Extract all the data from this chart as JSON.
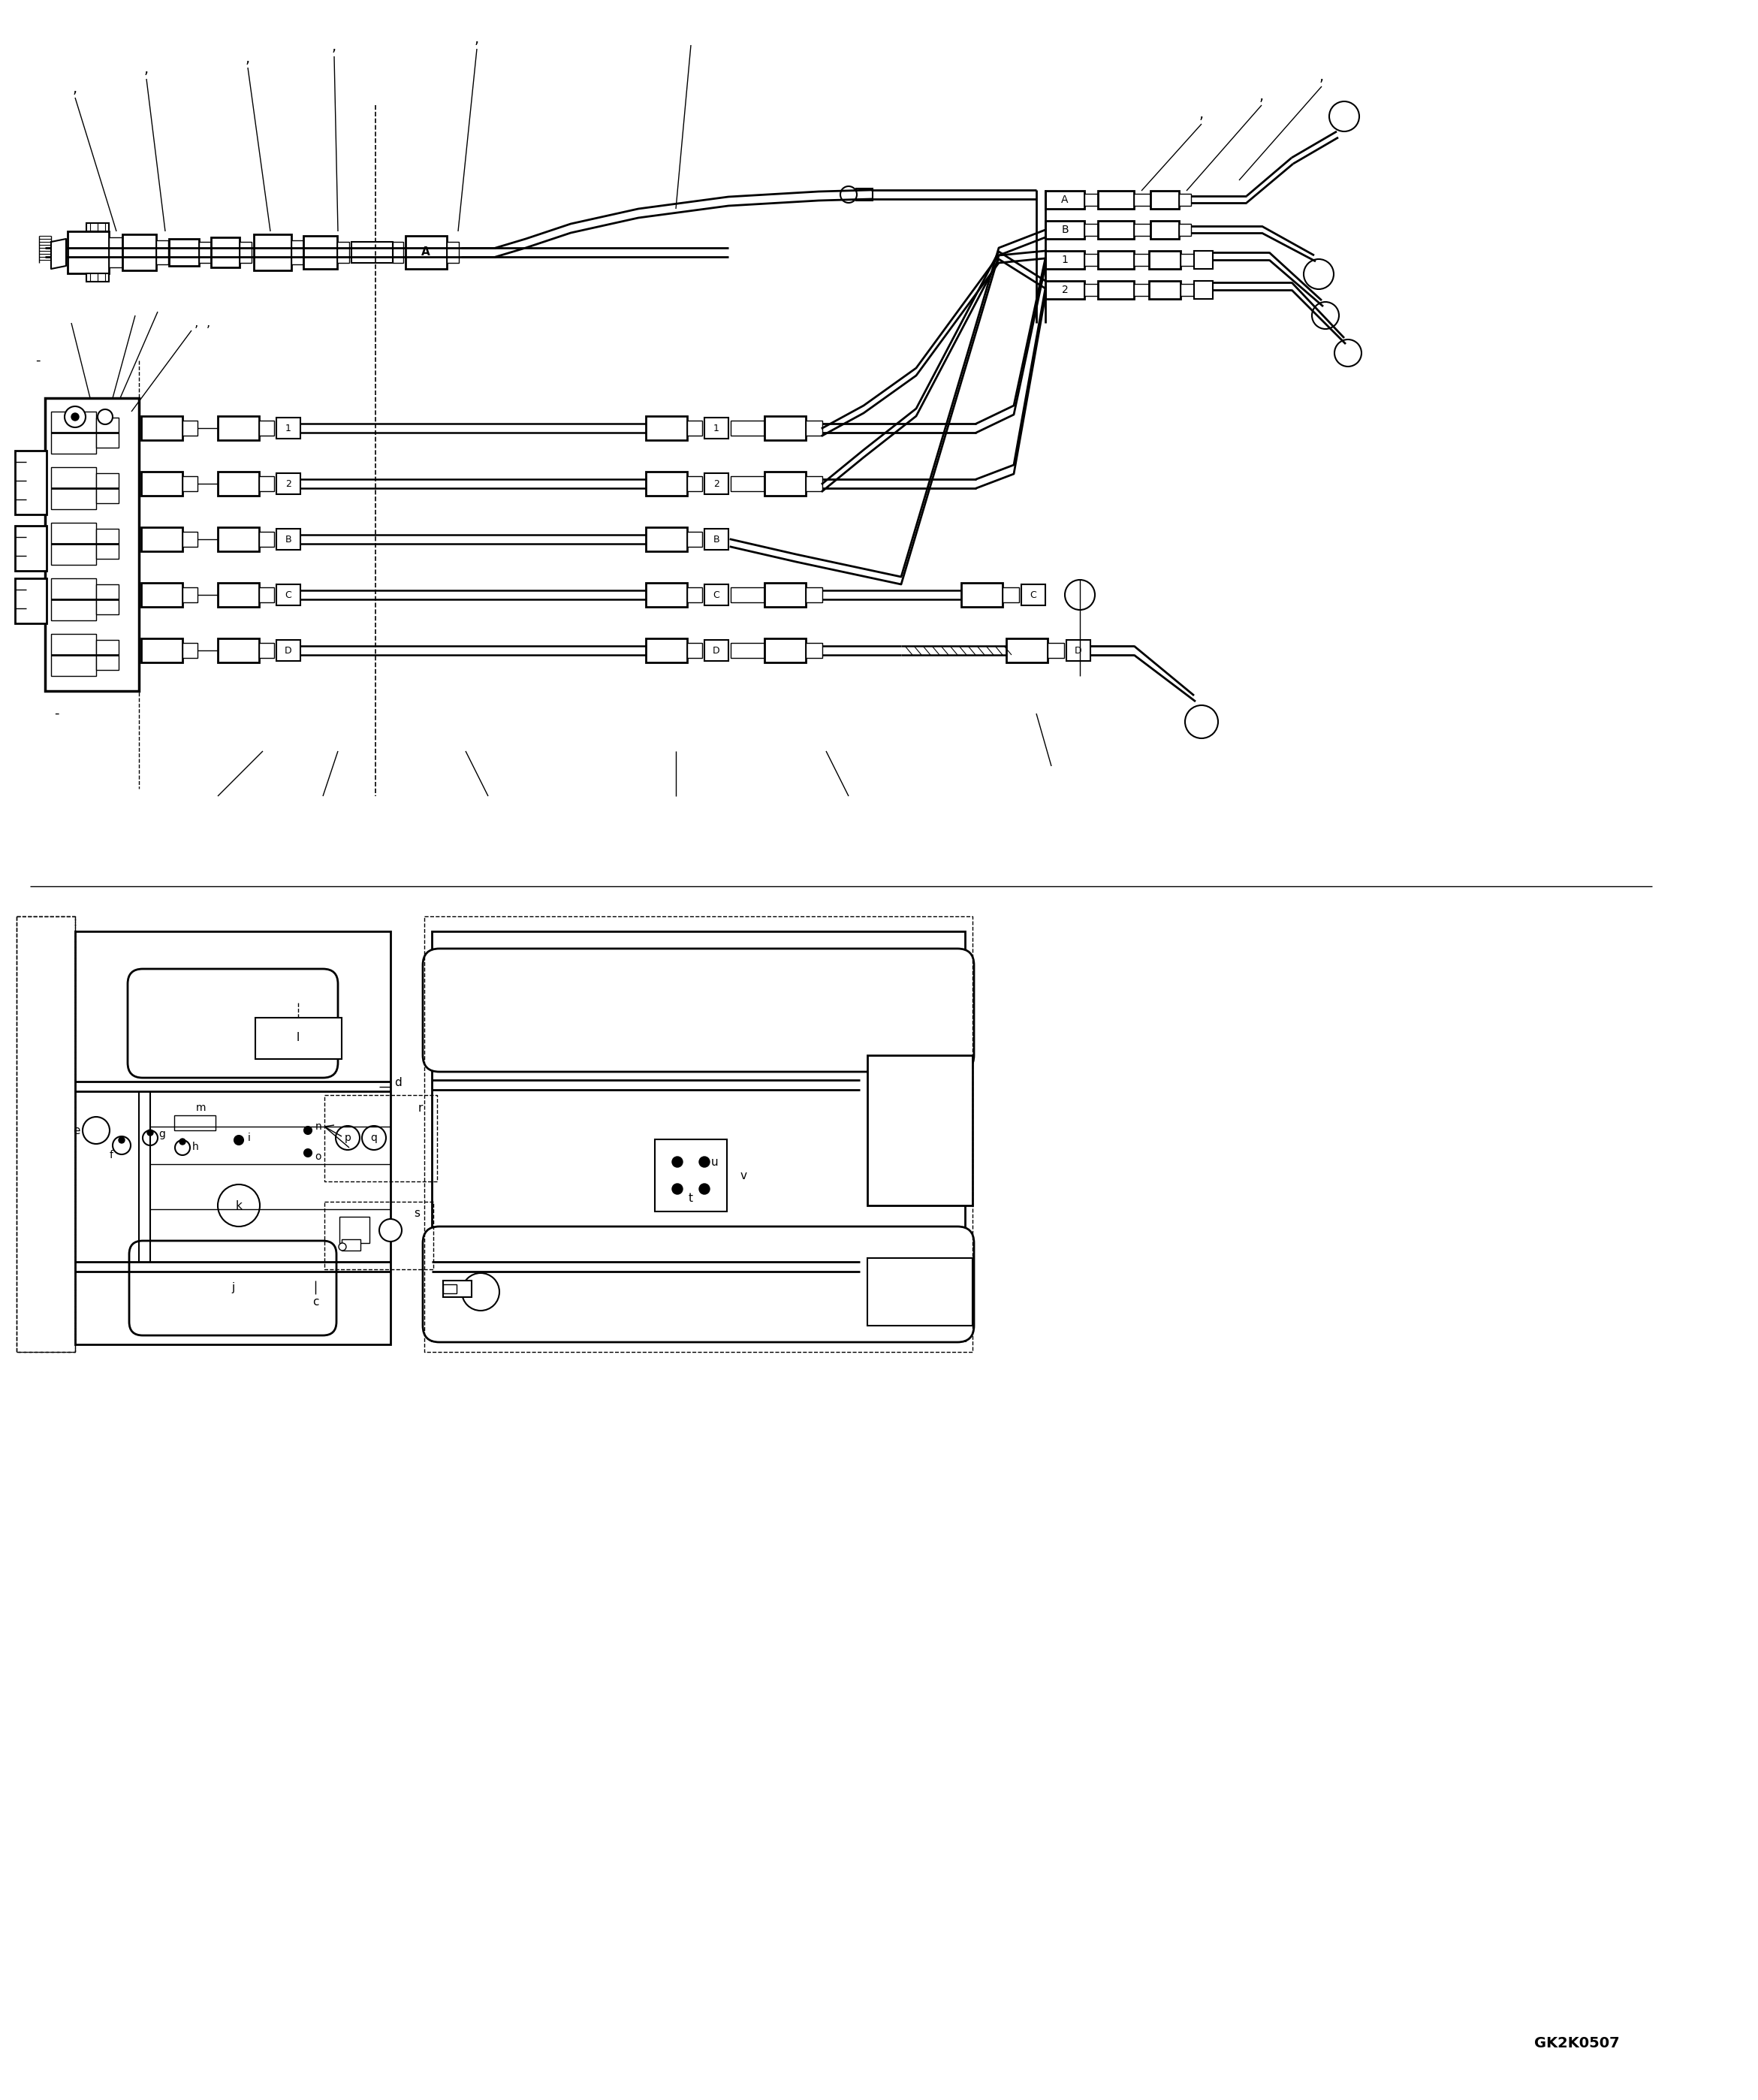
{
  "bg_color": "#ffffff",
  "line_color": "#000000",
  "fig_width": 23.41,
  "fig_height": 27.96,
  "watermark": "GK2K0507",
  "top_pipe_labels": [
    "1",
    "2",
    "B",
    "C",
    "D"
  ],
  "right_port_labels": [
    "A",
    "B",
    "1",
    "2"
  ],
  "bottom_left_labels": [
    "e",
    "f",
    "g",
    "h",
    "i",
    "j",
    "k",
    "l",
    "m",
    "n",
    "o",
    "p",
    "q",
    "r",
    "s",
    "c",
    "d"
  ],
  "bottom_right_labels": [
    "t",
    "u",
    "v"
  ]
}
